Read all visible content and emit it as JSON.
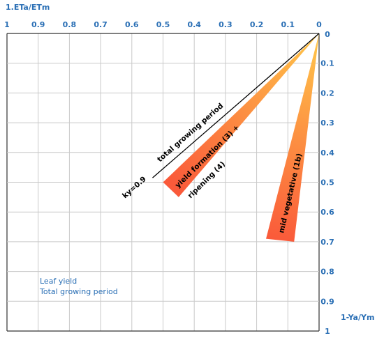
{
  "chart_data": {
    "type": "line",
    "xlabel": "1.ETa/ETm",
    "ylabel": "1-Ya/Ym",
    "x_ticks": [
      "1",
      "0.9",
      "0.8",
      "0.7",
      "0.6",
      "0.5",
      "0.4",
      "0.3",
      "0.2",
      "0.1",
      "0"
    ],
    "y_ticks": [
      "0",
      "0.1",
      "0.2",
      "0.3",
      "0.4",
      "0.5",
      "0.6",
      "0.7",
      "0.8",
      "0.9",
      "1"
    ],
    "xlim": [
      1,
      0
    ],
    "ylim": [
      0,
      1
    ],
    "grid": true,
    "series": [
      {
        "name": "total growing period",
        "type": "line",
        "ky": 0.9,
        "points": [
          [
            0,
            0
          ],
          [
            0.5,
            0.45
          ]
        ]
      },
      {
        "name": "yield formation (3) + ripening (4)",
        "type": "band",
        "colors": [
          "#ffc84a",
          "#fa5a3a"
        ],
        "points": [
          [
            0,
            0
          ],
          [
            0.5,
            0.5
          ],
          [
            0.45,
            0.55
          ]
        ]
      },
      {
        "name": "mid vegetative (1b)",
        "type": "band",
        "colors": [
          "#ffc84a",
          "#fa5a3a"
        ],
        "points": [
          [
            0,
            0
          ],
          [
            0.17,
            0.69
          ],
          [
            0.08,
            0.7
          ]
        ]
      }
    ],
    "annotations": {
      "ky": "ky=0.9",
      "total": "total growing period",
      "yield_formation": "yield formation (3) +",
      "ripening": "ripening (4)",
      "mid_vegetative": "mid vegetative (1b)",
      "note_line1": "Leaf yield",
      "note_line2": "Total growing period"
    }
  }
}
